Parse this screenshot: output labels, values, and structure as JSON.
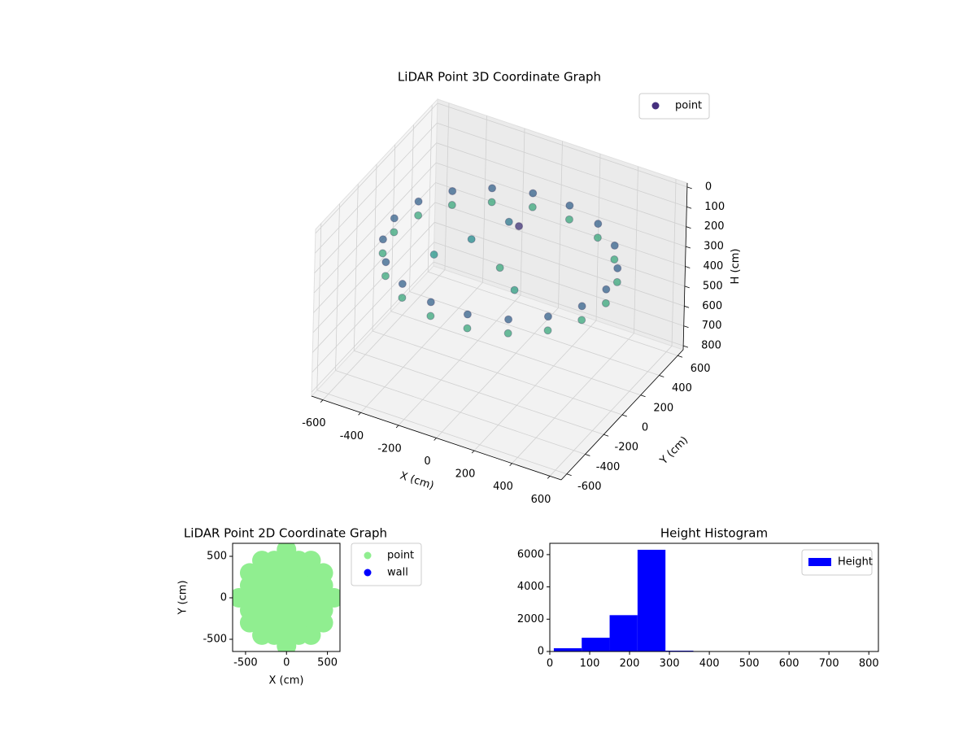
{
  "chart_data": [
    {
      "type": "scatter3d",
      "title": "LiDAR Point 3D Coordinate Graph",
      "xlabel": "X (cm)",
      "ylabel": "Y (cm)",
      "zlabel": "H (cm)",
      "xlim": [
        -660,
        660
      ],
      "ylim": [
        -660,
        660
      ],
      "zlim": [
        820,
        -20
      ],
      "xticks": [
        -600,
        -400,
        -200,
        0,
        200,
        400,
        600
      ],
      "yticks": [
        -600,
        -400,
        -200,
        0,
        200,
        400,
        600
      ],
      "zticks": [
        0,
        100,
        200,
        300,
        400,
        500,
        600,
        700,
        800
      ],
      "colormap": "viridis",
      "grid": true,
      "legend": "upper right",
      "series": [
        {
          "name": "point",
          "color": "#46307e",
          "x": [
            560,
            526,
            429,
            280,
            97,
            -97,
            -280,
            -429,
            -526,
            -560,
            -526,
            -429,
            -280,
            -97,
            97,
            280,
            429,
            526,
            560,
            526,
            429,
            280,
            97,
            -97,
            -280,
            -429,
            -526,
            -560,
            -526,
            -429,
            -280,
            -97,
            97,
            280,
            429,
            526,
            0,
            -200,
            -100,
            150,
            -300,
            0
          ],
          "y": [
            0,
            192,
            360,
            485,
            552,
            552,
            485,
            360,
            192,
            0,
            -192,
            -360,
            -485,
            -552,
            -552,
            -485,
            -360,
            -192,
            0,
            192,
            360,
            485,
            552,
            552,
            485,
            360,
            192,
            0,
            -192,
            -360,
            -485,
            -552,
            -552,
            -485,
            -360,
            -192,
            0,
            100,
            300,
            -150,
            -100,
            200
          ],
          "z": [
            220,
            220,
            220,
            220,
            220,
            220,
            220,
            220,
            220,
            220,
            220,
            220,
            220,
            220,
            220,
            220,
            220,
            220,
            290,
            290,
            290,
            290,
            290,
            290,
            290,
            290,
            290,
            290,
            290,
            290,
            290,
            290,
            290,
            290,
            290,
            290,
            290,
            260,
            240,
            280,
            270,
            180
          ]
        }
      ]
    },
    {
      "type": "scatter",
      "title": "LiDAR Point 2D Coordinate Graph",
      "xlabel": "X (cm)",
      "ylabel": "Y (cm)",
      "xlim": [
        -658,
        653
      ],
      "ylim": [
        -647,
        657
      ],
      "xticks": [
        -500,
        0,
        500
      ],
      "yticks": [
        -500,
        0,
        500
      ],
      "legend": "outside right",
      "series": [
        {
          "name": "point",
          "color": "#90ee90",
          "x": [
            -300,
            -150,
            0,
            150,
            300,
            -450,
            -300,
            -150,
            0,
            150,
            300,
            450,
            -450,
            -300,
            -150,
            0,
            150,
            300,
            450,
            -450,
            -300,
            -150,
            0,
            150,
            300,
            450,
            -450,
            -300,
            -150,
            0,
            150,
            300,
            450,
            -450,
            -300,
            -150,
            0,
            150,
            300,
            450,
            -300,
            -150,
            0,
            150,
            300,
            580,
            -580,
            0,
            0
          ],
          "y": [
            450,
            450,
            450,
            450,
            450,
            300,
            300,
            300,
            300,
            300,
            300,
            300,
            150,
            150,
            150,
            150,
            150,
            150,
            150,
            0,
            0,
            0,
            0,
            0,
            0,
            0,
            -150,
            -150,
            -150,
            -150,
            -150,
            -150,
            -150,
            -300,
            -300,
            -300,
            -300,
            -300,
            -300,
            -300,
            -450,
            -450,
            -450,
            -450,
            -450,
            0,
            0,
            580,
            -580
          ]
        },
        {
          "name": "wall",
          "color": "#0000ff",
          "x": [],
          "y": []
        }
      ]
    },
    {
      "type": "histogram",
      "title": "Height Histogram",
      "bins": [
        10,
        80,
        150,
        220,
        290,
        360,
        430,
        500,
        570,
        640,
        710
      ],
      "xlim": [
        0,
        824
      ],
      "ylim": [
        0,
        6700
      ],
      "xticks": [
        0,
        100,
        200,
        300,
        400,
        500,
        600,
        700,
        800
      ],
      "yticks": [
        0,
        2000,
        4000,
        6000
      ],
      "legend": "upper right",
      "series": [
        {
          "name": "Height",
          "color": "#0000ff",
          "values": [
            200,
            850,
            2250,
            6300,
            50,
            5,
            3,
            2,
            1,
            2
          ]
        }
      ]
    }
  ]
}
